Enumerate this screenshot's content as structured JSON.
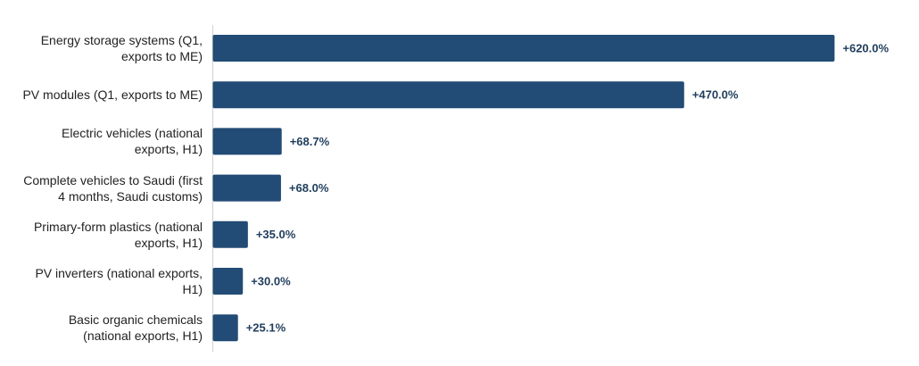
{
  "chart_data": {
    "type": "bar",
    "orientation": "horizontal",
    "categories": [
      "Energy storage systems (Q1, exports to ME)",
      "PV modules (Q1, exports to ME)",
      "Electric vehicles (national exports, H1)",
      "Complete vehicles to Saudi (first 4 months, Saudi customs)",
      "Primary-form plastics (national exports, H1)",
      "PV inverters (national exports, H1)",
      "Basic organic chemicals (national exports, H1)"
    ],
    "values": [
      620.0,
      470.0,
      68.7,
      68.0,
      35.0,
      30.0,
      25.1
    ],
    "value_labels": [
      "+620.0%",
      "+470.0%",
      "+68.7%",
      "+68.0%",
      "+35.0%",
      "+30.0%",
      "+25.1%"
    ],
    "color": "#224b75",
    "xlim": [
      0,
      650
    ]
  }
}
